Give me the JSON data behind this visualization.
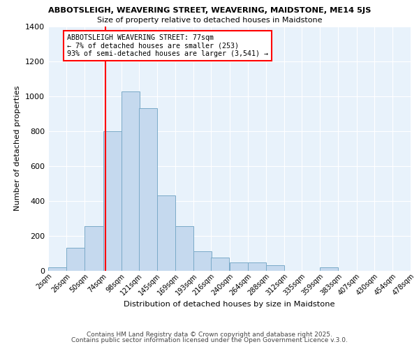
{
  "title1": "ABBOTSLEIGH, WEAVERING STREET, WEAVERING, MAIDSTONE, ME14 5JS",
  "title2": "Size of property relative to detached houses in Maidstone",
  "xlabel": "Distribution of detached houses by size in Maidstone",
  "ylabel": "Number of detached properties",
  "bar_color": "#c5d9ee",
  "bar_edge_color": "#7aaac8",
  "bg_color": "#e8f2fb",
  "annotation_text": "ABBOTSLEIGH WEAVERING STREET: 77sqm\n← 7% of detached houses are smaller (253)\n93% of semi-detached houses are larger (3,541) →",
  "red_line_x": 77,
  "bin_starts": [
    2,
    26,
    50,
    74,
    98,
    121,
    145,
    169,
    193,
    216,
    240,
    264,
    288,
    312,
    335,
    359,
    383,
    407,
    430,
    454
  ],
  "bin_width": 24,
  "bin_counts": [
    20,
    130,
    253,
    800,
    1025,
    930,
    430,
    255,
    110,
    75,
    45,
    45,
    30,
    0,
    0,
    20,
    0,
    0,
    0,
    0
  ],
  "xtick_labels": [
    "2sqm",
    "26sqm",
    "50sqm",
    "74sqm",
    "98sqm",
    "121sqm",
    "145sqm",
    "169sqm",
    "193sqm",
    "216sqm",
    "240sqm",
    "264sqm",
    "288sqm",
    "312sqm",
    "335sqm",
    "359sqm",
    "383sqm",
    "407sqm",
    "430sqm",
    "454sqm",
    "478sqm"
  ],
  "xtick_positions": [
    2,
    26,
    50,
    74,
    98,
    121,
    145,
    169,
    193,
    216,
    240,
    264,
    288,
    312,
    335,
    359,
    383,
    407,
    430,
    454,
    478
  ],
  "ylim_max": 1400,
  "yticks": [
    0,
    200,
    400,
    600,
    800,
    1000,
    1200,
    1400
  ],
  "footer1": "Contains HM Land Registry data © Crown copyright and database right 2025.",
  "footer2": "Contains public sector information licensed under the Open Government Licence v.3.0."
}
